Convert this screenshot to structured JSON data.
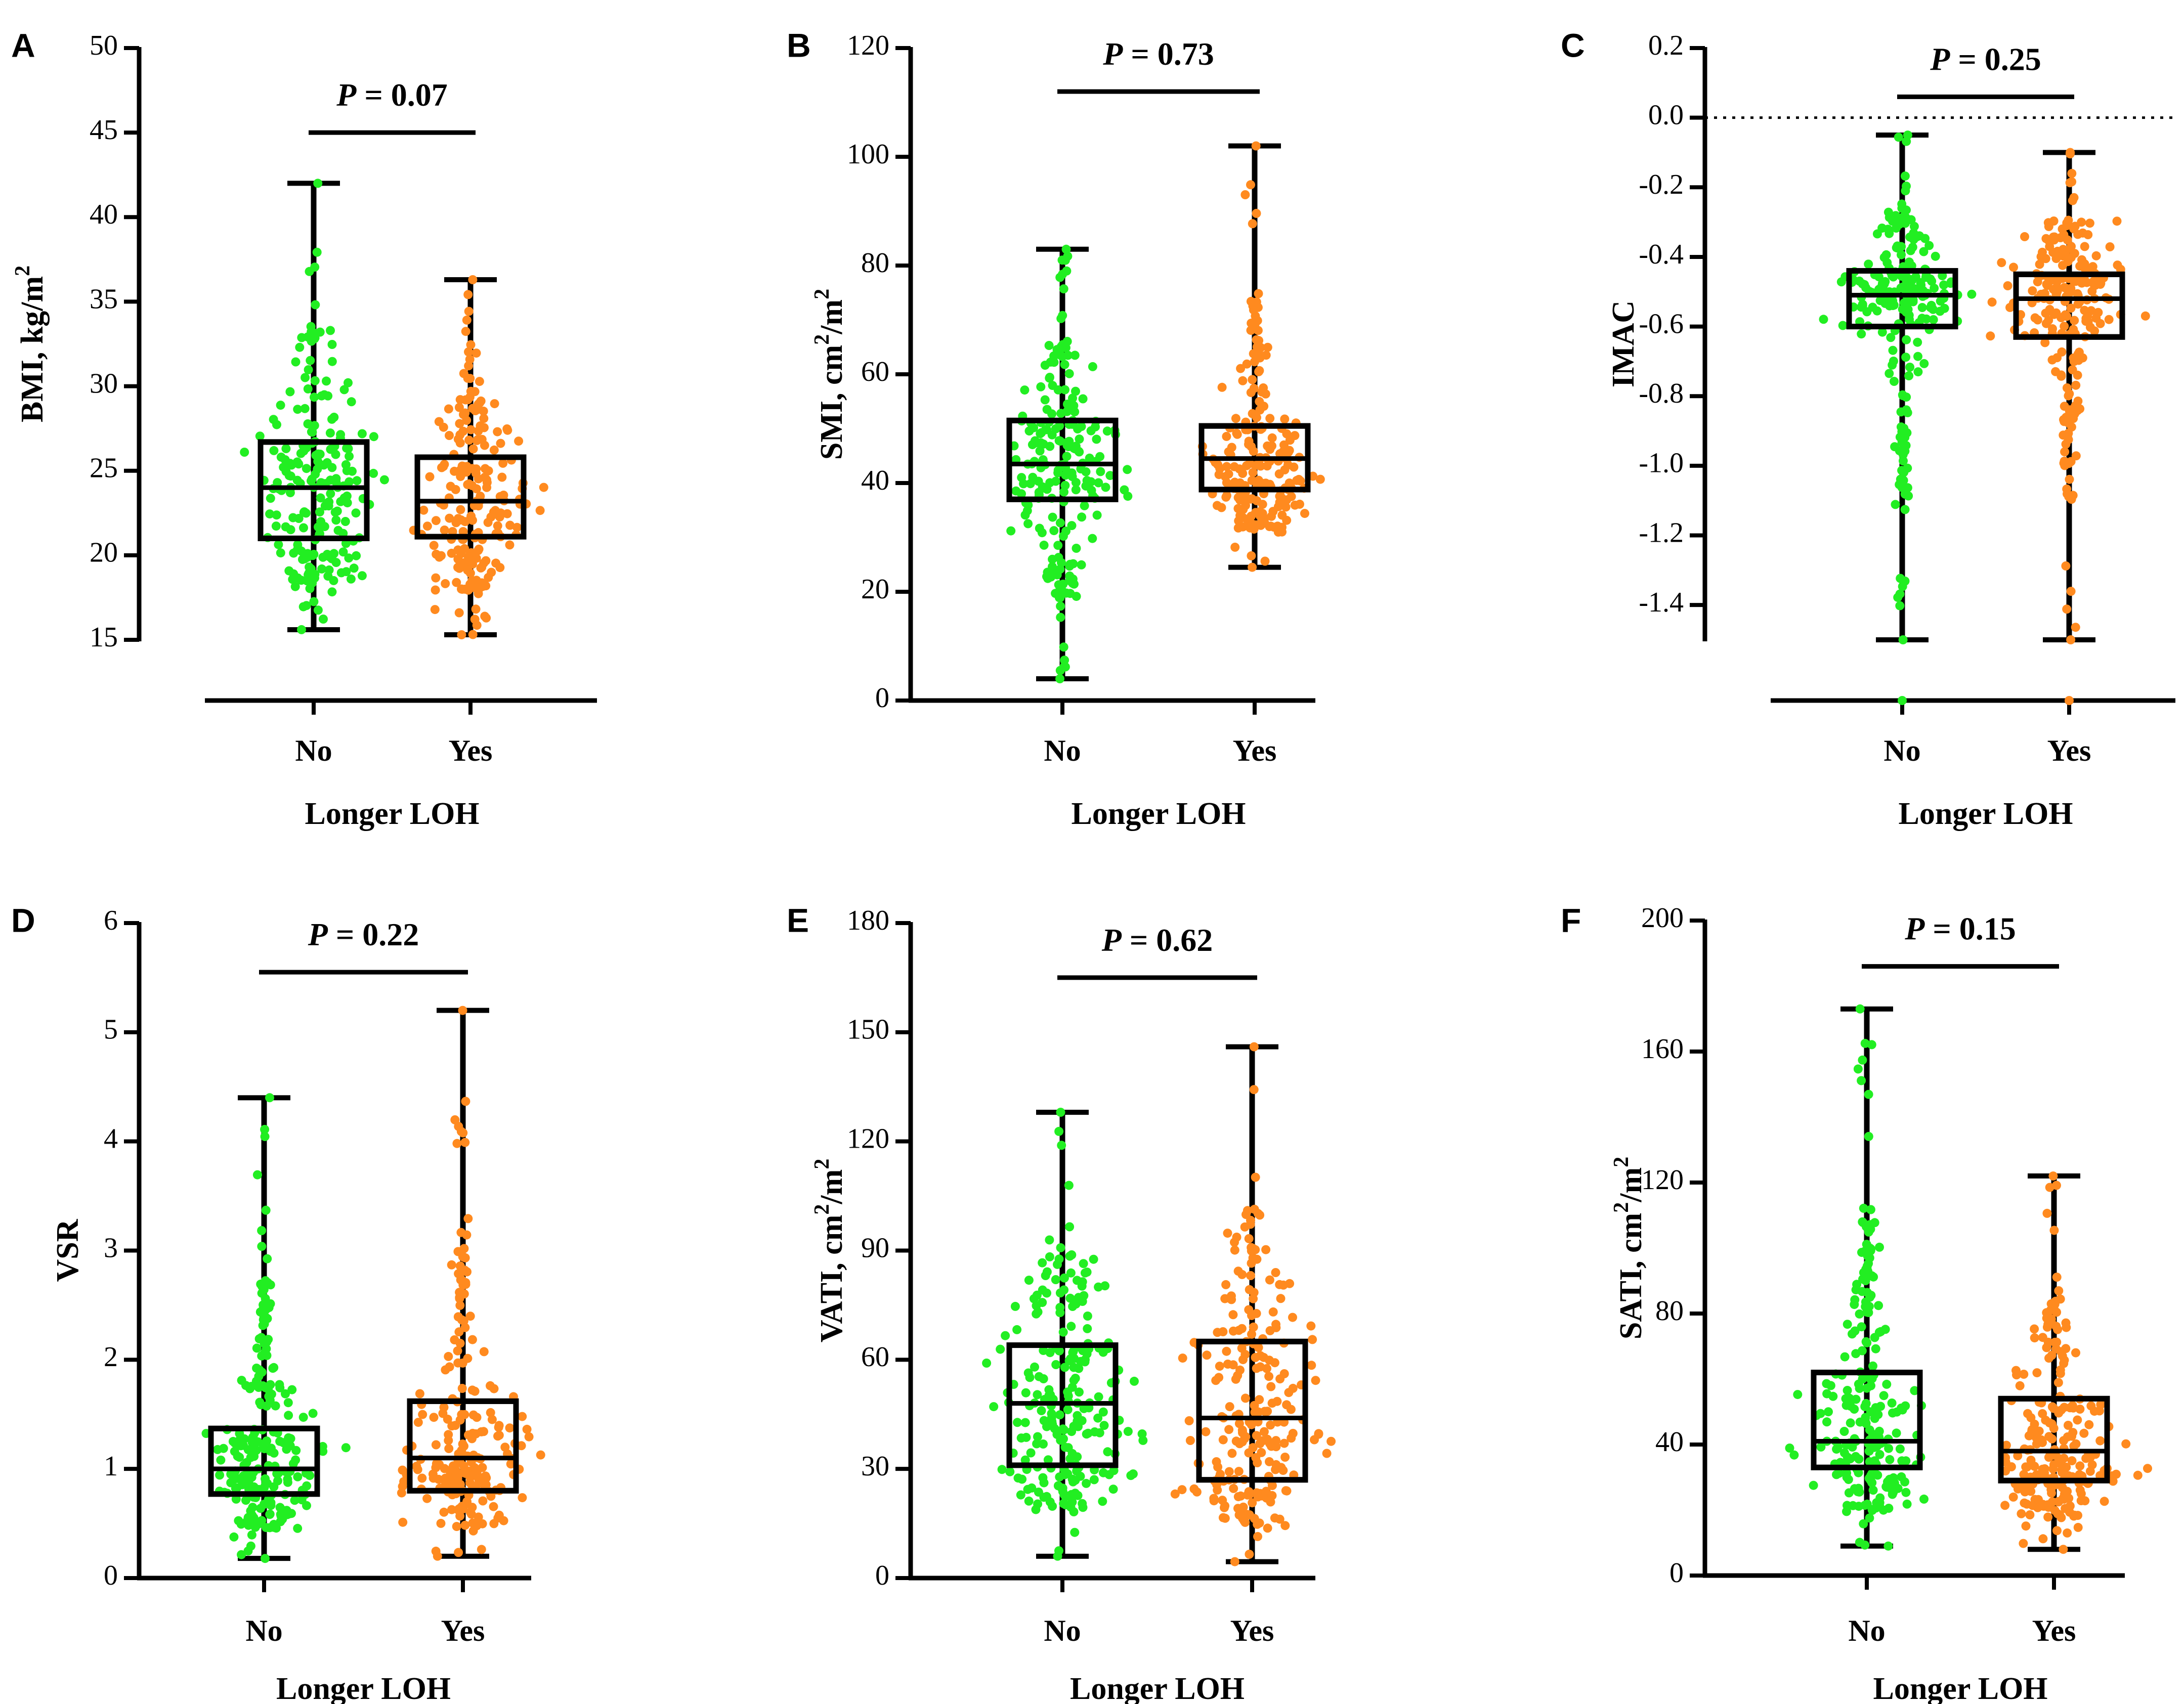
{
  "colors": {
    "no_group": "#22EE22",
    "yes_group": "#FF8A1F",
    "lines": "#000000"
  },
  "chart_data": [
    {
      "panel": "A",
      "type": "box-scatter",
      "ylabel": "BMI, kg/m",
      "ylabel_sup": "2",
      "ylabel_tail": "",
      "xlabel": "Longer LOH",
      "categories": [
        "No",
        "Yes"
      ],
      "ylim": [
        15,
        50
      ],
      "yticks": [
        15,
        20,
        25,
        30,
        35,
        40,
        45,
        50
      ],
      "tick_labels": [
        "15",
        "20",
        "25",
        "30",
        "35",
        "40",
        "45",
        "50"
      ],
      "p_italic": "P",
      "p_rest": " = 0.07",
      "p_y": 45,
      "baseline_below": true,
      "series": [
        {
          "name": "No",
          "min": 15.6,
          "q1": 21.0,
          "median": 24.0,
          "q3": 26.7,
          "max": 42.0,
          "n": 210,
          "spread": 0.9
        },
        {
          "name": "Yes",
          "min": 15.3,
          "q1": 21.1,
          "median": 23.2,
          "q3": 25.8,
          "max": 36.3,
          "n": 210,
          "spread": 0.85
        }
      ]
    },
    {
      "panel": "B",
      "type": "box-scatter",
      "ylabel": "SMI, cm",
      "ylabel_sup": "2",
      "ylabel_tail": "/m",
      "ylabel_sup2": "2",
      "xlabel": "Longer LOH",
      "categories": [
        "No",
        "Yes"
      ],
      "ylim": [
        0,
        120
      ],
      "yticks": [
        0,
        20,
        40,
        60,
        80,
        100,
        120
      ],
      "tick_labels": [
        "0",
        "20",
        "40",
        "60",
        "80",
        "100",
        "120"
      ],
      "p_italic": "P",
      "p_rest": " = 0.73",
      "p_y": 112,
      "baseline_below": false,
      "series": [
        {
          "name": "No",
          "min": 4.0,
          "q1": 37.0,
          "median": 43.5,
          "q3": 51.5,
          "max": 83.0,
          "n": 210,
          "spread": 0.9
        },
        {
          "name": "Yes",
          "min": 24.5,
          "q1": 38.8,
          "median": 44.5,
          "q3": 50.5,
          "max": 102.0,
          "n": 210,
          "spread": 0.9
        }
      ]
    },
    {
      "panel": "C",
      "type": "box-scatter",
      "ylabel": "IMAC",
      "ylabel_sup": "",
      "ylabel_tail": "",
      "xlabel": "Longer LOH",
      "categories": [
        "No",
        "Yes"
      ],
      "ylim": [
        -1.5,
        0.2
      ],
      "yticks": [
        -1.4,
        -1.2,
        -1.0,
        -0.8,
        -0.6,
        -0.4,
        -0.2,
        0.0,
        0.2
      ],
      "tick_labels": [
        "-1.4",
        "-1.2",
        "-1.0",
        "-0.8",
        "-0.6",
        "-0.4",
        "-0.2",
        "0.0",
        "0.2"
      ],
      "p_italic": "P",
      "p_rest": " = 0.25",
      "p_y": 0.06,
      "baseline_below": true,
      "reference_line": 0.0,
      "series": [
        {
          "name": "No",
          "min": -1.5,
          "q1": -0.6,
          "median": -0.51,
          "q3": -0.44,
          "max": -0.05,
          "n": 230,
          "spread": 0.85
        },
        {
          "name": "Yes",
          "min": -1.5,
          "q1": -0.63,
          "median": -0.52,
          "q3": -0.45,
          "max": -0.1,
          "n": 230,
          "spread": 0.85
        }
      ]
    },
    {
      "panel": "D",
      "type": "box-scatter",
      "ylabel": "VSR",
      "ylabel_sup": "",
      "ylabel_tail": "",
      "xlabel": "Longer LOH",
      "categories": [
        "No",
        "Yes"
      ],
      "ylim": [
        0,
        6
      ],
      "yticks": [
        0,
        1,
        2,
        3,
        4,
        5,
        6
      ],
      "tick_labels": [
        "0",
        "1",
        "2",
        "3",
        "4",
        "5",
        "6"
      ],
      "p_italic": "P",
      "p_rest": " = 0.22",
      "p_y": 5.55,
      "baseline_below": false,
      "series": [
        {
          "name": "No",
          "min": 0.18,
          "q1": 0.77,
          "median": 1.0,
          "q3": 1.37,
          "max": 4.4,
          "n": 220,
          "spread": 0.85
        },
        {
          "name": "Yes",
          "min": 0.2,
          "q1": 0.8,
          "median": 1.1,
          "q3": 1.62,
          "max": 5.2,
          "n": 220,
          "spread": 0.85
        }
      ]
    },
    {
      "panel": "E",
      "type": "box-scatter",
      "ylabel": "VATI, cm",
      "ylabel_sup": "2",
      "ylabel_tail": "/m",
      "ylabel_sup2": "2",
      "xlabel": "Longer LOH",
      "categories": [
        "No",
        "Yes"
      ],
      "ylim": [
        0,
        180
      ],
      "yticks": [
        0,
        30,
        60,
        90,
        120,
        150,
        180
      ],
      "tick_labels": [
        "0",
        "30",
        "60",
        "90",
        "120",
        "150",
        "180"
      ],
      "p_italic": "P",
      "p_rest": " = 0.62",
      "p_y": 165,
      "baseline_below": false,
      "series": [
        {
          "name": "No",
          "min": 6.0,
          "q1": 31.0,
          "median": 48.0,
          "q3": 64.0,
          "max": 128.0,
          "n": 230,
          "spread": 0.95
        },
        {
          "name": "Yes",
          "min": 4.5,
          "q1": 27.0,
          "median": 44.0,
          "q3": 65.0,
          "max": 146.0,
          "n": 230,
          "spread": 0.95
        }
      ]
    },
    {
      "panel": "F",
      "type": "box-scatter",
      "ylabel": "SATI, cm",
      "ylabel_sup": "2",
      "ylabel_tail": "/m",
      "ylabel_sup2": "2",
      "xlabel": "Longer LOH",
      "categories": [
        "No",
        "Yes"
      ],
      "ylim": [
        0,
        200
      ],
      "yticks": [
        0,
        40,
        80,
        120,
        160,
        200
      ],
      "tick_labels": [
        "0",
        "40",
        "80",
        "120",
        "160",
        "200"
      ],
      "p_italic": "P",
      "p_rest": " = 0.15",
      "p_y": 186,
      "baseline_below": false,
      "series": [
        {
          "name": "No",
          "min": 9.0,
          "q1": 33.0,
          "median": 41.0,
          "q3": 62.0,
          "max": 173.0,
          "n": 230,
          "spread": 0.9
        },
        {
          "name": "Yes",
          "min": 8.0,
          "q1": 29.0,
          "median": 38.0,
          "q3": 54.0,
          "max": 122.0,
          "n": 230,
          "spread": 0.9
        }
      ]
    }
  ]
}
